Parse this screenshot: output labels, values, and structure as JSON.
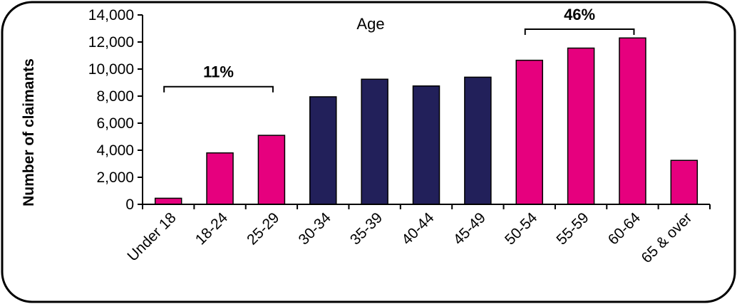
{
  "chart_data": {
    "type": "bar",
    "title": "Age",
    "xlabel": "",
    "ylabel": "Number of claimants",
    "ylim": [
      0,
      14000
    ],
    "yticks": [
      "0",
      "2,000",
      "4,000",
      "6,000",
      "8,000",
      "10,000",
      "12,000",
      "14,000"
    ],
    "ytick_values": [
      0,
      2000,
      4000,
      6000,
      8000,
      10000,
      12000,
      14000
    ],
    "categories": [
      "Under 18",
      "18-24",
      "25-29",
      "30-34",
      "35-39",
      "40-44",
      "45-49",
      "50-54",
      "55-59",
      "60-64",
      "65 & over"
    ],
    "values": [
      450,
      3800,
      5100,
      7950,
      9250,
      8750,
      9400,
      10650,
      11550,
      12300,
      3250
    ],
    "bar_colors": [
      "#e6007e",
      "#e6007e",
      "#e6007e",
      "#22205a",
      "#22205a",
      "#22205a",
      "#22205a",
      "#e6007e",
      "#e6007e",
      "#e6007e",
      "#e6007e"
    ],
    "grid": false,
    "legend": "none",
    "annotations": [
      {
        "text": "11%",
        "from_category": 0,
        "to_category": 2,
        "y": 8700
      },
      {
        "text": "46%",
        "from_category": 7,
        "to_category": 9,
        "y": 12950
      }
    ]
  }
}
